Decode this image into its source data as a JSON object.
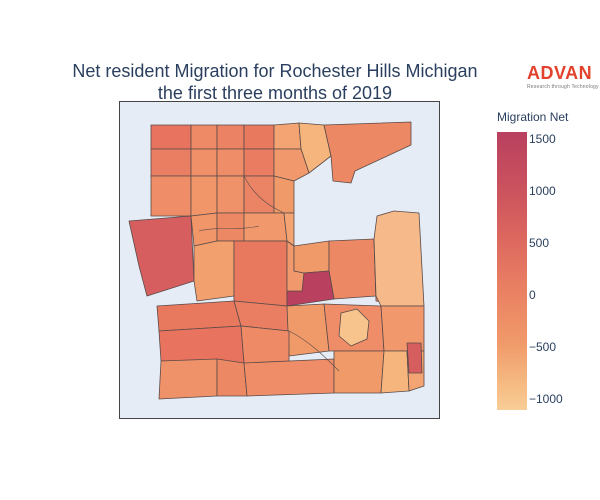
{
  "title": {
    "line1": "Net resident Migration for Rochester Hills Michigan",
    "line2": "the first three months of 2019"
  },
  "logo": {
    "word": "ADVAN",
    "tagline": "Research through Technology",
    "color": "#e2422b"
  },
  "colorbar": {
    "title": "Migration Net",
    "ticks": [
      "1500",
      "1000",
      "500",
      "0",
      "−500",
      "−1000"
    ],
    "colors": [
      "#b9405f",
      "#cc545e",
      "#de6a5f",
      "#ea8263",
      "#f09a6a",
      "#f6bd84",
      "#f8cd98"
    ],
    "range": [
      -1100,
      1600
    ]
  },
  "map": {
    "background": "#e5ecf6",
    "border": "#444444"
  }
}
